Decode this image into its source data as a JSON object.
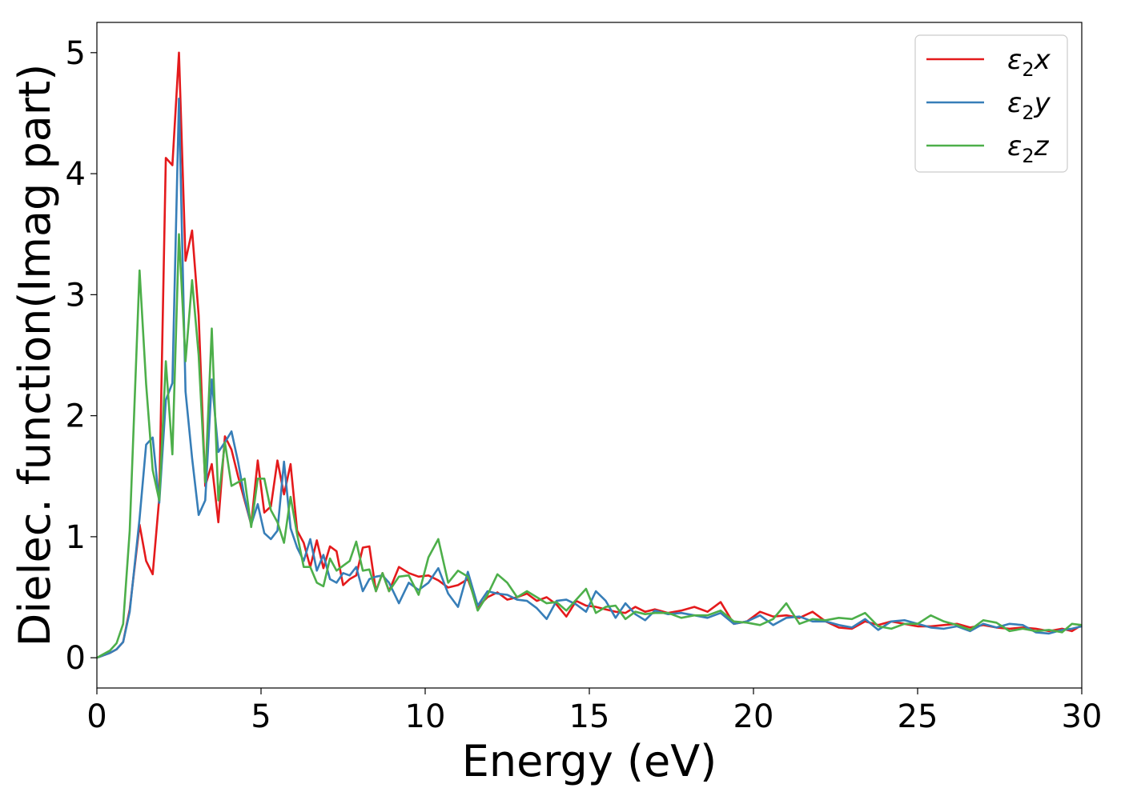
{
  "chart_data": {
    "type": "line",
    "xlabel": "Energy (eV)",
    "ylabel": "Dielec. function(Imag part)",
    "xlim": [
      0,
      30
    ],
    "ylim": [
      -0.25,
      5.25
    ],
    "xticks": [
      0,
      5,
      10,
      15,
      20,
      25,
      30
    ],
    "yticks": [
      0,
      1,
      2,
      3,
      4,
      5
    ],
    "grid": false,
    "legend_position": "top-right",
    "series": [
      {
        "name": "ε2x",
        "legend_base": "ε",
        "legend_sub": "2",
        "legend_tail": "x",
        "color": "#e41a1c",
        "x": [
          0,
          0.2,
          0.4,
          0.6,
          0.8,
          1.0,
          1.3,
          1.5,
          1.7,
          1.9,
          2.1,
          2.3,
          2.5,
          2.7,
          2.9,
          3.1,
          3.3,
          3.5,
          3.7,
          3.9,
          4.1,
          4.3,
          4.5,
          4.7,
          4.9,
          5.1,
          5.3,
          5.5,
          5.7,
          5.9,
          6.1,
          6.3,
          6.5,
          6.7,
          6.9,
          7.1,
          7.3,
          7.5,
          7.7,
          7.9,
          8.1,
          8.3,
          8.5,
          8.7,
          8.9,
          9.2,
          9.5,
          9.8,
          10.1,
          10.4,
          10.7,
          11.0,
          11.3,
          11.6,
          11.9,
          12.2,
          12.5,
          12.8,
          13.1,
          13.4,
          13.7,
          14.0,
          14.3,
          14.6,
          14.9,
          15.2,
          15.5,
          15.8,
          16.1,
          16.4,
          16.7,
          17.0,
          17.4,
          17.8,
          18.2,
          18.6,
          19.0,
          19.4,
          19.8,
          20.2,
          20.6,
          21.0,
          21.4,
          21.8,
          22.2,
          22.6,
          23.0,
          23.4,
          23.8,
          24.2,
          24.6,
          25.0,
          25.4,
          25.8,
          26.2,
          26.6,
          27.0,
          27.4,
          27.8,
          28.2,
          28.6,
          29.0,
          29.4,
          29.7,
          30.0
        ],
        "y": [
          0.0,
          0.02,
          0.04,
          0.07,
          0.13,
          0.4,
          1.1,
          0.8,
          0.69,
          1.32,
          4.13,
          4.07,
          5.0,
          3.28,
          3.53,
          2.83,
          1.42,
          1.6,
          1.12,
          1.83,
          1.72,
          1.5,
          1.3,
          1.1,
          1.63,
          1.2,
          1.25,
          1.63,
          1.35,
          1.6,
          1.05,
          0.95,
          0.75,
          0.97,
          0.74,
          0.92,
          0.88,
          0.6,
          0.65,
          0.68,
          0.91,
          0.92,
          0.55,
          0.7,
          0.55,
          0.75,
          0.7,
          0.67,
          0.68,
          0.64,
          0.58,
          0.6,
          0.65,
          0.42,
          0.5,
          0.54,
          0.48,
          0.5,
          0.53,
          0.47,
          0.5,
          0.44,
          0.34,
          0.47,
          0.43,
          0.42,
          0.4,
          0.38,
          0.37,
          0.42,
          0.38,
          0.4,
          0.37,
          0.39,
          0.42,
          0.38,
          0.46,
          0.28,
          0.3,
          0.38,
          0.34,
          0.35,
          0.33,
          0.38,
          0.3,
          0.25,
          0.24,
          0.3,
          0.27,
          0.3,
          0.28,
          0.26,
          0.26,
          0.27,
          0.28,
          0.25,
          0.27,
          0.25,
          0.24,
          0.25,
          0.24,
          0.22,
          0.24,
          0.22,
          0.27
        ]
      },
      {
        "name": "ε2y",
        "legend_base": "ε",
        "legend_sub": "2",
        "legend_tail": "y",
        "color": "#377eb8",
        "x": [
          0,
          0.2,
          0.4,
          0.6,
          0.8,
          1.0,
          1.3,
          1.5,
          1.7,
          1.9,
          2.1,
          2.3,
          2.5,
          2.7,
          2.9,
          3.1,
          3.3,
          3.5,
          3.7,
          3.9,
          4.1,
          4.3,
          4.5,
          4.7,
          4.9,
          5.1,
          5.3,
          5.5,
          5.7,
          5.9,
          6.1,
          6.3,
          6.5,
          6.7,
          6.9,
          7.1,
          7.3,
          7.5,
          7.7,
          7.9,
          8.1,
          8.3,
          8.5,
          8.7,
          8.9,
          9.2,
          9.5,
          9.8,
          10.1,
          10.4,
          10.7,
          11.0,
          11.3,
          11.6,
          11.9,
          12.2,
          12.5,
          12.8,
          13.1,
          13.4,
          13.7,
          14.0,
          14.3,
          14.6,
          14.9,
          15.2,
          15.5,
          15.8,
          16.1,
          16.4,
          16.7,
          17.0,
          17.4,
          17.8,
          18.2,
          18.6,
          19.0,
          19.4,
          19.8,
          20.2,
          20.6,
          21.0,
          21.4,
          21.8,
          22.2,
          22.6,
          23.0,
          23.4,
          23.8,
          24.2,
          24.6,
          25.0,
          25.4,
          25.8,
          26.2,
          26.6,
          27.0,
          27.4,
          27.8,
          28.2,
          28.6,
          29.0,
          29.4,
          29.7,
          30.0
        ],
        "y": [
          0.0,
          0.02,
          0.04,
          0.07,
          0.13,
          0.38,
          1.15,
          1.76,
          1.82,
          1.28,
          2.13,
          2.27,
          4.62,
          2.2,
          1.65,
          1.18,
          1.3,
          2.3,
          1.7,
          1.78,
          1.87,
          1.62,
          1.32,
          1.1,
          1.27,
          1.03,
          0.98,
          1.05,
          1.62,
          1.07,
          0.91,
          0.8,
          0.98,
          0.72,
          0.85,
          0.65,
          0.62,
          0.7,
          0.68,
          0.75,
          0.55,
          0.65,
          0.67,
          0.68,
          0.62,
          0.45,
          0.62,
          0.56,
          0.62,
          0.74,
          0.53,
          0.42,
          0.71,
          0.43,
          0.55,
          0.53,
          0.52,
          0.48,
          0.47,
          0.41,
          0.32,
          0.47,
          0.48,
          0.44,
          0.38,
          0.55,
          0.47,
          0.33,
          0.45,
          0.36,
          0.31,
          0.39,
          0.36,
          0.37,
          0.35,
          0.33,
          0.37,
          0.28,
          0.3,
          0.35,
          0.27,
          0.33,
          0.34,
          0.3,
          0.3,
          0.27,
          0.25,
          0.32,
          0.23,
          0.3,
          0.31,
          0.28,
          0.25,
          0.24,
          0.26,
          0.22,
          0.28,
          0.25,
          0.28,
          0.27,
          0.21,
          0.2,
          0.23,
          0.24,
          0.26
        ]
      },
      {
        "name": "ε2z",
        "legend_base": "ε",
        "legend_sub": "2",
        "legend_tail": "z",
        "color": "#4daf4a",
        "x": [
          0,
          0.2,
          0.4,
          0.6,
          0.8,
          1.0,
          1.3,
          1.5,
          1.7,
          1.9,
          2.1,
          2.3,
          2.5,
          2.7,
          2.9,
          3.1,
          3.3,
          3.5,
          3.7,
          3.9,
          4.1,
          4.3,
          4.5,
          4.7,
          4.9,
          5.1,
          5.3,
          5.5,
          5.7,
          5.9,
          6.1,
          6.3,
          6.5,
          6.7,
          6.9,
          7.1,
          7.3,
          7.5,
          7.7,
          7.9,
          8.1,
          8.3,
          8.5,
          8.7,
          8.9,
          9.2,
          9.5,
          9.8,
          10.1,
          10.4,
          10.7,
          11.0,
          11.3,
          11.6,
          11.9,
          12.2,
          12.5,
          12.8,
          13.1,
          13.4,
          13.7,
          14.0,
          14.3,
          14.6,
          14.9,
          15.2,
          15.5,
          15.8,
          16.1,
          16.4,
          16.7,
          17.0,
          17.4,
          17.8,
          18.2,
          18.6,
          19.0,
          19.4,
          19.8,
          20.2,
          20.6,
          21.0,
          21.4,
          21.8,
          22.2,
          22.6,
          23.0,
          23.4,
          23.8,
          24.2,
          24.6,
          25.0,
          25.4,
          25.8,
          26.2,
          26.6,
          27.0,
          27.4,
          27.8,
          28.2,
          28.6,
          29.0,
          29.4,
          29.7,
          30.0
        ],
        "y": [
          0.0,
          0.03,
          0.06,
          0.12,
          0.28,
          1.05,
          3.2,
          2.26,
          1.55,
          1.3,
          2.45,
          1.68,
          3.5,
          2.45,
          3.12,
          2.5,
          1.45,
          2.72,
          1.3,
          1.78,
          1.42,
          1.45,
          1.48,
          1.08,
          1.48,
          1.48,
          1.22,
          1.12,
          0.95,
          1.33,
          1.02,
          0.75,
          0.75,
          0.62,
          0.59,
          0.82,
          0.72,
          0.76,
          0.8,
          0.96,
          0.72,
          0.73,
          0.55,
          0.7,
          0.55,
          0.67,
          0.68,
          0.52,
          0.83,
          0.98,
          0.62,
          0.72,
          0.67,
          0.39,
          0.52,
          0.69,
          0.62,
          0.5,
          0.55,
          0.5,
          0.45,
          0.46,
          0.39,
          0.48,
          0.57,
          0.37,
          0.42,
          0.43,
          0.32,
          0.38,
          0.36,
          0.37,
          0.37,
          0.33,
          0.35,
          0.35,
          0.39,
          0.3,
          0.29,
          0.27,
          0.32,
          0.45,
          0.28,
          0.32,
          0.31,
          0.33,
          0.32,
          0.37,
          0.26,
          0.24,
          0.28,
          0.28,
          0.35,
          0.3,
          0.27,
          0.23,
          0.31,
          0.29,
          0.22,
          0.24,
          0.22,
          0.23,
          0.21,
          0.28,
          0.27
        ]
      }
    ]
  }
}
